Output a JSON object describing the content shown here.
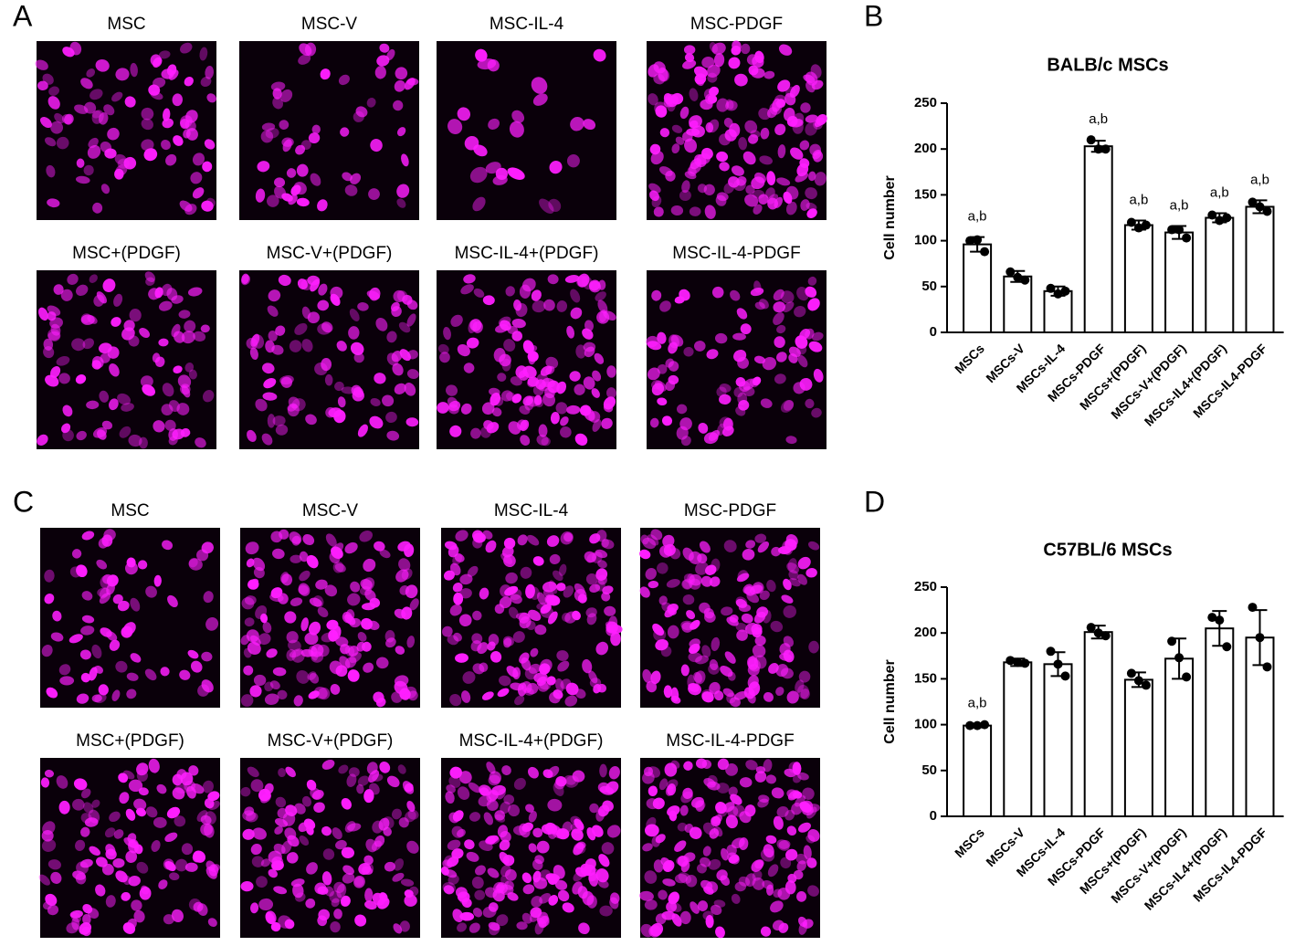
{
  "panel_labels": [
    "A",
    "B",
    "C",
    "D"
  ],
  "image_panels": [
    {
      "labels": [
        "MSC",
        "MSC-V",
        "MSC-IL-4",
        "MSC-PDGF",
        "MSC+(PDGF)",
        "MSC-V+(PDGF)",
        "MSC-IL-4+(PDGF)",
        "MSC-IL-4-PDGF"
      ]
    },
    {
      "labels": [
        "MSC",
        "MSC-V",
        "MSC-IL-4",
        "MSC-PDGF",
        "MSC+(PDGF)",
        "MSC-V+(PDGF)",
        "MSC-IL-4+(PDGF)",
        "MSC-IL-4-PDGF"
      ]
    }
  ],
  "chart_data": [
    {
      "type": "bar",
      "title": "BALB/c MSCs",
      "ylabel": "Cell number",
      "categories": [
        "MSCs",
        "MSCs-V",
        "MSCs-IL-4",
        "MSCs-PDGF",
        "MSCs+(PDGF)",
        "MSCs-V+(PDGF)",
        "MSCs-IL4+(PDGF)",
        "MSCs-IL4-PDGF"
      ],
      "values": [
        96,
        61,
        45,
        203,
        117,
        109,
        125,
        137
      ],
      "errors": [
        8,
        6,
        5,
        6,
        5,
        7,
        5,
        7
      ],
      "points": [
        [
          100,
          101,
          88
        ],
        [
          66,
          60,
          57
        ],
        [
          48,
          42,
          45
        ],
        [
          210,
          200,
          200
        ],
        [
          120,
          114,
          117
        ],
        [
          112,
          112,
          103
        ],
        [
          128,
          122,
          125
        ],
        [
          142,
          137,
          132
        ]
      ],
      "annotations": [
        "a,b",
        null,
        null,
        "a,b",
        "a,b",
        "a,b",
        "a,b",
        "a,b"
      ],
      "ylim": [
        0,
        250
      ],
      "yticks": [
        0,
        50,
        100,
        150,
        200,
        250
      ],
      "color": "#ffffff"
    },
    {
      "type": "bar",
      "title": "C57BL/6 MSCs",
      "ylabel": "Cell number",
      "categories": [
        "MSCs",
        "MSCs-V",
        "MSCs-IL-4",
        "MSCs-PDGF",
        "MSCs+(PDGF)",
        "MSCs-V+(PDGF)",
        "MSCs-IL4+(PDGF)",
        "MSCs-IL4-PDGF"
      ],
      "values": [
        99,
        168,
        166,
        201,
        149,
        172,
        205,
        195
      ],
      "errors": [
        2,
        4,
        13,
        7,
        8,
        22,
        19,
        30
      ],
      "points": [
        [
          99,
          99,
          100
        ],
        [
          170,
          168,
          167
        ],
        [
          180,
          166,
          153
        ],
        [
          206,
          200,
          197
        ],
        [
          156,
          148,
          143
        ],
        [
          191,
          173,
          152
        ],
        [
          217,
          214,
          185
        ],
        [
          228,
          195,
          163
        ]
      ],
      "annotations": [
        "a,b",
        null,
        null,
        null,
        null,
        null,
        null,
        null
      ],
      "ylim": [
        0,
        250
      ],
      "yticks": [
        0,
        50,
        100,
        150,
        200,
        250
      ],
      "color": "#ffffff"
    }
  ]
}
